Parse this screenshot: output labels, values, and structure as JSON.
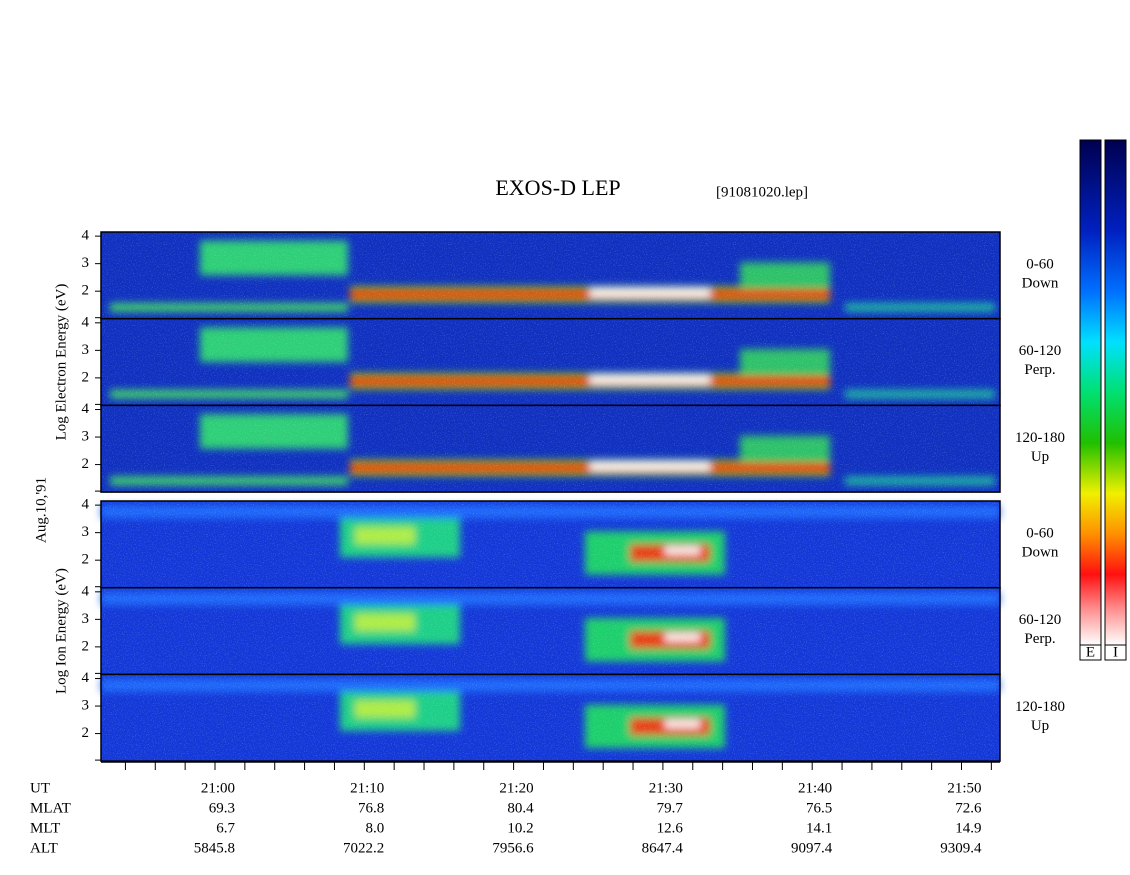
{
  "title": "EXOS-D LEP",
  "file": "[91081020.lep]",
  "date": "Aug.10,'91",
  "groups": [
    {
      "label": "Log Electron Energy (eV)",
      "panels": [
        {
          "channel": [
            "0-60",
            "Down"
          ],
          "yticks": [
            2,
            3,
            4
          ]
        },
        {
          "channel": [
            "60-120",
            "Perp."
          ],
          "yticks": [
            2,
            3,
            4
          ]
        },
        {
          "channel": [
            "120-180",
            "Up"
          ],
          "yticks": [
            2,
            3,
            4
          ]
        }
      ]
    },
    {
      "label": "Log Ion Energy (eV)",
      "panels": [
        {
          "channel": [
            "0-60",
            "Down"
          ],
          "yticks": [
            2,
            3,
            4
          ]
        },
        {
          "channel": [
            "60-120",
            "Perp."
          ],
          "yticks": [
            2,
            3,
            4
          ]
        },
        {
          "channel": [
            "120-180",
            "Up"
          ],
          "yticks": [
            2,
            3,
            4
          ]
        }
      ]
    }
  ],
  "ylim": [
    1,
    4.15
  ],
  "ephemeris": [
    {
      "label": "UT",
      "values": [
        "21:00",
        "21:10",
        "21:20",
        "21:30",
        "21:40",
        "21:50"
      ]
    },
    {
      "label": "MLAT",
      "values": [
        "69.3",
        "76.8",
        "80.4",
        "79.7",
        "76.5",
        "72.6"
      ]
    },
    {
      "label": "MLT",
      "values": [
        "6.7",
        "8.0",
        "10.2",
        "12.6",
        "14.1",
        "14.9"
      ]
    },
    {
      "label": "ALT",
      "values": [
        "5845.8",
        "7022.2",
        "7956.6",
        "8647.4",
        "9097.4",
        "9309.4"
      ]
    }
  ],
  "colorbars": [
    "E",
    "I"
  ]
}
